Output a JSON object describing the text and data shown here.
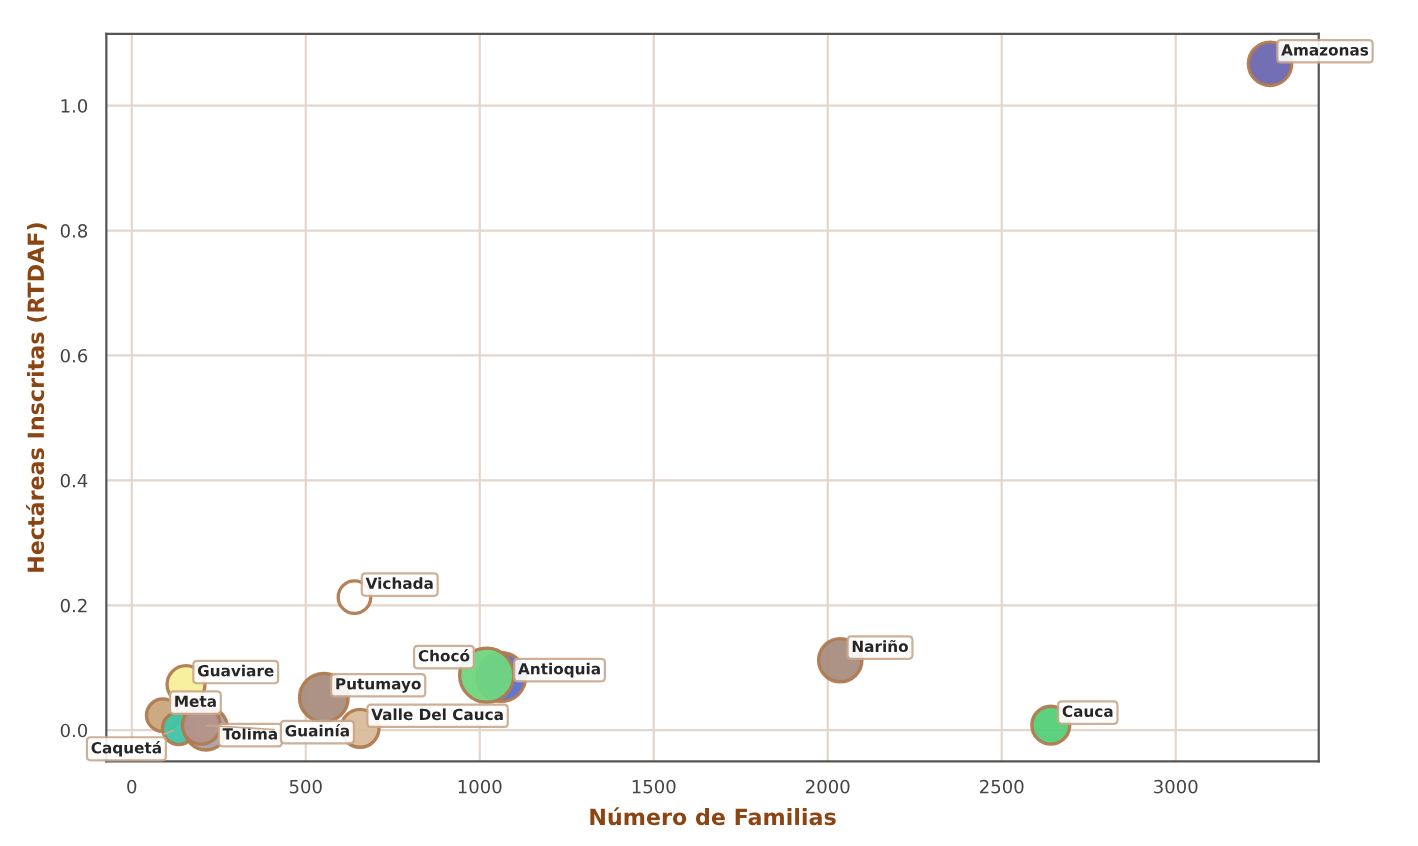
{
  "chart_data": {
    "type": "bubble",
    "xlabel": "Número de Familias",
    "ylabel": "Hectáreas Inscritas (RTDAF)",
    "x": [
      3271,
      640,
      156,
      89,
      135,
      213,
      200,
      552,
      656,
      1062,
      1020,
      2036,
      2641
    ],
    "values": [
      1.067,
      0.213,
      0.073,
      0.024,
      0.003,
      0.003,
      0.008,
      0.052,
      0.003,
      0.085,
      0.088,
      0.112,
      0.008
    ],
    "sizes": [
      0.64,
      0.36,
      0.49,
      0.36,
      0.36,
      0.64,
      0.49,
      0.81,
      0.49,
      0.81,
      1,
      0.64,
      0.49
    ],
    "colors": [
      "#6b67b0",
      "#ffffff",
      "#f6ef9a",
      "#c9a77c",
      "#3fc4a8",
      "#a6a2a8",
      "#b39489",
      "#a88d80",
      "#d9b99a",
      "#5a6fd0",
      "#6fd67e",
      "#a88d80",
      "#55cf77"
    ],
    "annotations": [
      {
        "text": "Amazonas",
        "x": 3271,
        "y": 1.067
      },
      {
        "text": "Vichada",
        "x": 640,
        "y": 0.213
      },
      {
        "text": "Guaviare",
        "x": 156,
        "y": 0.073
      },
      {
        "text": "Meta",
        "x": 89,
        "y": 0.024
      },
      {
        "text": "Caquetá",
        "x": 135,
        "y": 0.003
      },
      {
        "text": "Tolima",
        "x": 213,
        "y": 0.003
      },
      {
        "text": "Guainía",
        "x": 200,
        "y": 0.008
      },
      {
        "text": "Putumayo",
        "x": 552,
        "y": 0.052
      },
      {
        "text": "Valle Del Cauca",
        "x": 656,
        "y": 0.003
      },
      {
        "text": "Antioquia",
        "x": 1062,
        "y": 0.085
      },
      {
        "text": "Chocó",
        "x": 1020,
        "y": 0.088
      },
      {
        "text": "Nariño",
        "x": 2036,
        "y": 0.112
      },
      {
        "text": "Cauca",
        "x": 2641,
        "y": 0.008
      }
    ],
    "xlim": [
      -73,
      3411
    ],
    "ylim": [
      -0.05,
      1.115
    ],
    "xticks": [
      0,
      500,
      1000,
      1500,
      2000,
      2500,
      3000
    ],
    "yticks": [
      {
        "value": 0,
        "label": "0.0"
      },
      0.2,
      0.4,
      0.6,
      0.8,
      {
        "value": 1,
        "label": "1.0"
      }
    ],
    "grid": true,
    "legend": false
  }
}
